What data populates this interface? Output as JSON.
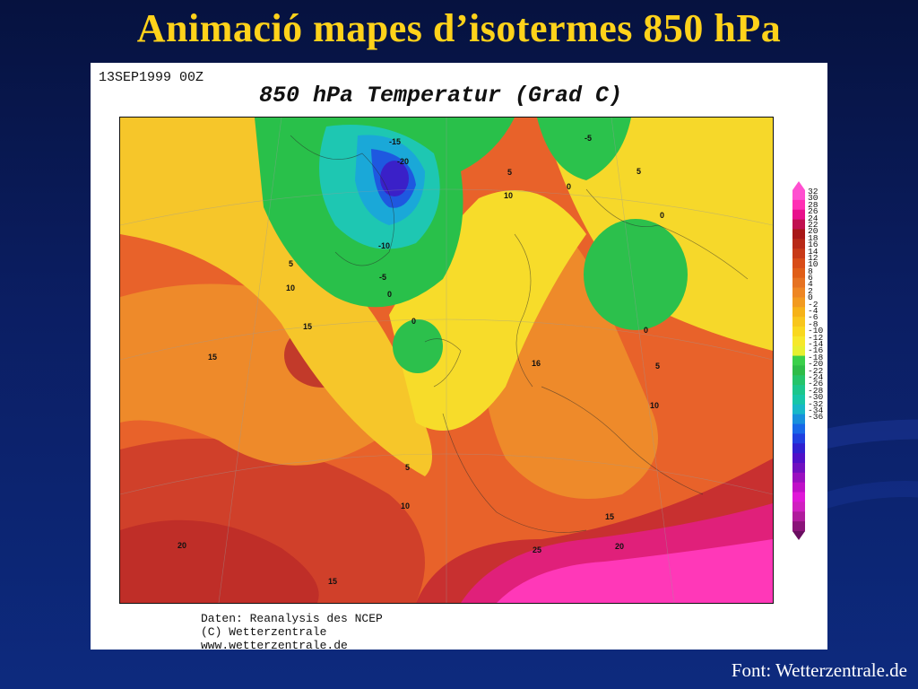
{
  "slide": {
    "title": "Animació mapes d’isotermes 850 hPa",
    "source_credit": "Font: Wetterzentrale.de"
  },
  "map": {
    "timestamp": "13SEP1999 00Z",
    "title": "850 hPa Temperatur (Grad C)",
    "credits": [
      "Daten: Reanalysis des NCEP",
      "(C) Wetterzentrale",
      "www.wetterzentrale.de"
    ],
    "contour_labels": [
      "-15",
      "-5",
      "-20",
      "10",
      "5",
      "-10",
      "-5",
      "0",
      "5",
      "0",
      "0",
      "0",
      "5",
      "10",
      "15",
      "0",
      "15",
      "16",
      "5",
      "10",
      "5",
      "10",
      "15",
      "20",
      "20",
      "25",
      "15"
    ]
  },
  "legend": {
    "labels": [
      "32",
      "30",
      "28",
      "26",
      "24",
      "22",
      "20",
      "18",
      "16",
      "14",
      "12",
      "10",
      "8",
      "6",
      "4",
      "2",
      "0",
      "-2",
      "-4",
      "-6",
      "-8",
      "-10",
      "-12",
      "-14",
      "-16",
      "-18",
      "-20",
      "-22",
      "-24",
      "-26",
      "-28",
      "-30",
      "-32",
      "-34",
      "-36"
    ],
    "colors": [
      "#ff4fd0",
      "#ff2fb4",
      "#e8108c",
      "#c01050",
      "#a81818",
      "#b82a18",
      "#c83a18",
      "#d84c18",
      "#e05e18",
      "#e67222",
      "#ee8624",
      "#f29a20",
      "#f6b218",
      "#f8c61c",
      "#f9d81e",
      "#f6e82a",
      "#e6f030",
      "#3ad04a",
      "#2ebc48",
      "#25c46a",
      "#1cc68c",
      "#17c6a8",
      "#18b8c8",
      "#1890dc",
      "#1868e8",
      "#2040e0",
      "#3020d0",
      "#5010c8",
      "#7010c0",
      "#9a10c0",
      "#c010c8",
      "#e018d8",
      "#d020c0",
      "#b01c9c",
      "#8a1478"
    ]
  },
  "colors": {
    "title": "#ffd21a",
    "panel": "#ffffff"
  }
}
